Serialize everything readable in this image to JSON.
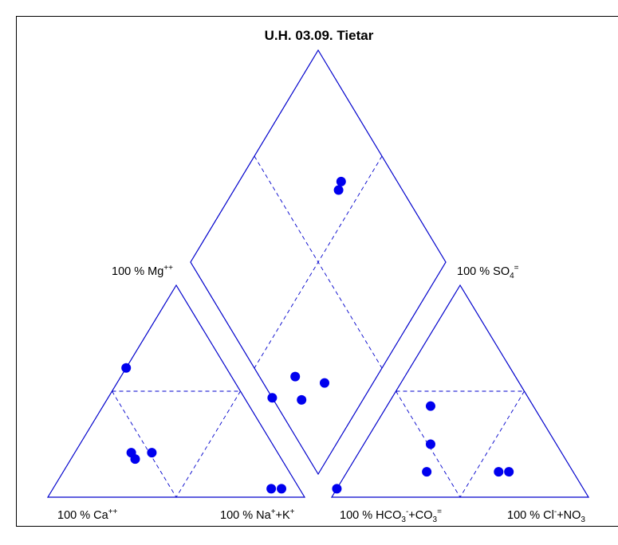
{
  "chart_data": {
    "type": "scatter",
    "subtype": "piper-diagram",
    "title": "U.H. 03.09. Tietar",
    "colors": {
      "axes": "#0000cc",
      "points": "#0000ee",
      "frame": "#000000"
    },
    "grid": true,
    "cation_triangle": {
      "labels": {
        "ca": {
          "pre": "100 % Ca",
          "sup": "++"
        },
        "na_k": {
          "pre": "100 % Na",
          "sup1": "+",
          "mid": "+K",
          "sup2": "+"
        },
        "mg": {
          "pre": "100 % Mg",
          "sup": "++"
        }
      },
      "points": [
        {
          "mg": 61,
          "na_k": 0
        },
        {
          "mg": 21,
          "na_k": 22
        },
        {
          "mg": 18,
          "na_k": 25
        },
        {
          "mg": 21,
          "na_k": 30
        },
        {
          "mg": 4,
          "na_k": 85
        },
        {
          "mg": 4,
          "na_k": 89
        }
      ]
    },
    "anion_triangle": {
      "labels": {
        "hco3_co3": {
          "pre": "100 % HCO",
          "sub1": "3",
          "sup1": "-",
          "mid": "+CO",
          "sub2": "3",
          "sup2": "="
        },
        "cl_no3": {
          "pre": "100 % Cl",
          "sup": "-",
          "mid": "+NO",
          "sub": "3"
        },
        "so4": {
          "pre": "100 % SO",
          "sub": "4",
          "sup": "="
        }
      },
      "points": [
        {
          "so4": 4,
          "cl": 0
        },
        {
          "so4": 43,
          "cl": 17
        },
        {
          "so4": 25,
          "cl": 26
        },
        {
          "so4": 12,
          "cl": 31
        },
        {
          "so4": 12,
          "cl": 59
        },
        {
          "so4": 12,
          "cl": 63
        }
      ]
    },
    "diamond": {
      "points": [
        {
          "top": 81,
          "right": 24
        },
        {
          "top": 76,
          "right": 11
        },
        {
          "top": 68,
          "right": 14
        },
        {
          "top": 64,
          "right": 0
        },
        {
          "top": 41,
          "right": 75
        },
        {
          "top": 40,
          "right": 78
        }
      ]
    }
  }
}
